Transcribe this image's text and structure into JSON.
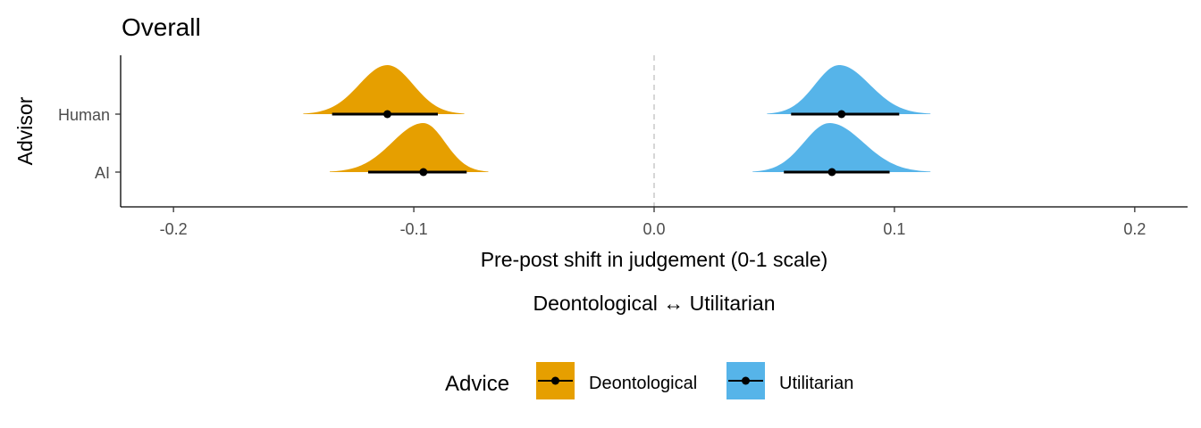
{
  "chart_data": {
    "type": "halfeye",
    "title": "Overall",
    "xlabel": "Pre-post shift in judgement (0-1 scale)",
    "xlabel_secondary": "Deontological ↔ Utilitarian",
    "ylabel": "Advisor",
    "xlim": [
      -0.222,
      0.222
    ],
    "x_ticks": [
      -0.2,
      -0.1,
      0.0,
      0.1,
      0.2
    ],
    "x_tick_labels": [
      "-0.2",
      "-0.1",
      "0.0",
      "0.1",
      "0.2"
    ],
    "categories": [
      "Human",
      "AI"
    ],
    "reference_line": 0.0,
    "grid": false,
    "legend": {
      "title": "Advice",
      "position": "bottom",
      "entries": [
        {
          "name": "Deontological",
          "color": "#E69F00"
        },
        {
          "name": "Utilitarian",
          "color": "#56B4E9"
        }
      ]
    },
    "series": [
      {
        "name": "Deontological",
        "color": "#E69F00",
        "points": [
          {
            "category": "Human",
            "median": -0.111,
            "interval": [
              -0.134,
              -0.09
            ],
            "range": [
              -0.146,
              -0.079
            ],
            "mode": -0.111
          },
          {
            "category": "AI",
            "median": -0.096,
            "interval": [
              -0.119,
              -0.078
            ],
            "range": [
              -0.135,
              -0.069
            ],
            "mode": -0.096
          }
        ]
      },
      {
        "name": "Utilitarian",
        "color": "#56B4E9",
        "points": [
          {
            "category": "Human",
            "median": 0.078,
            "interval": [
              0.057,
              0.102
            ],
            "range": [
              0.047,
              0.115
            ],
            "mode": 0.077
          },
          {
            "category": "AI",
            "median": 0.074,
            "interval": [
              0.054,
              0.098
            ],
            "range": [
              0.041,
              0.115
            ],
            "mode": 0.073
          }
        ]
      }
    ]
  }
}
